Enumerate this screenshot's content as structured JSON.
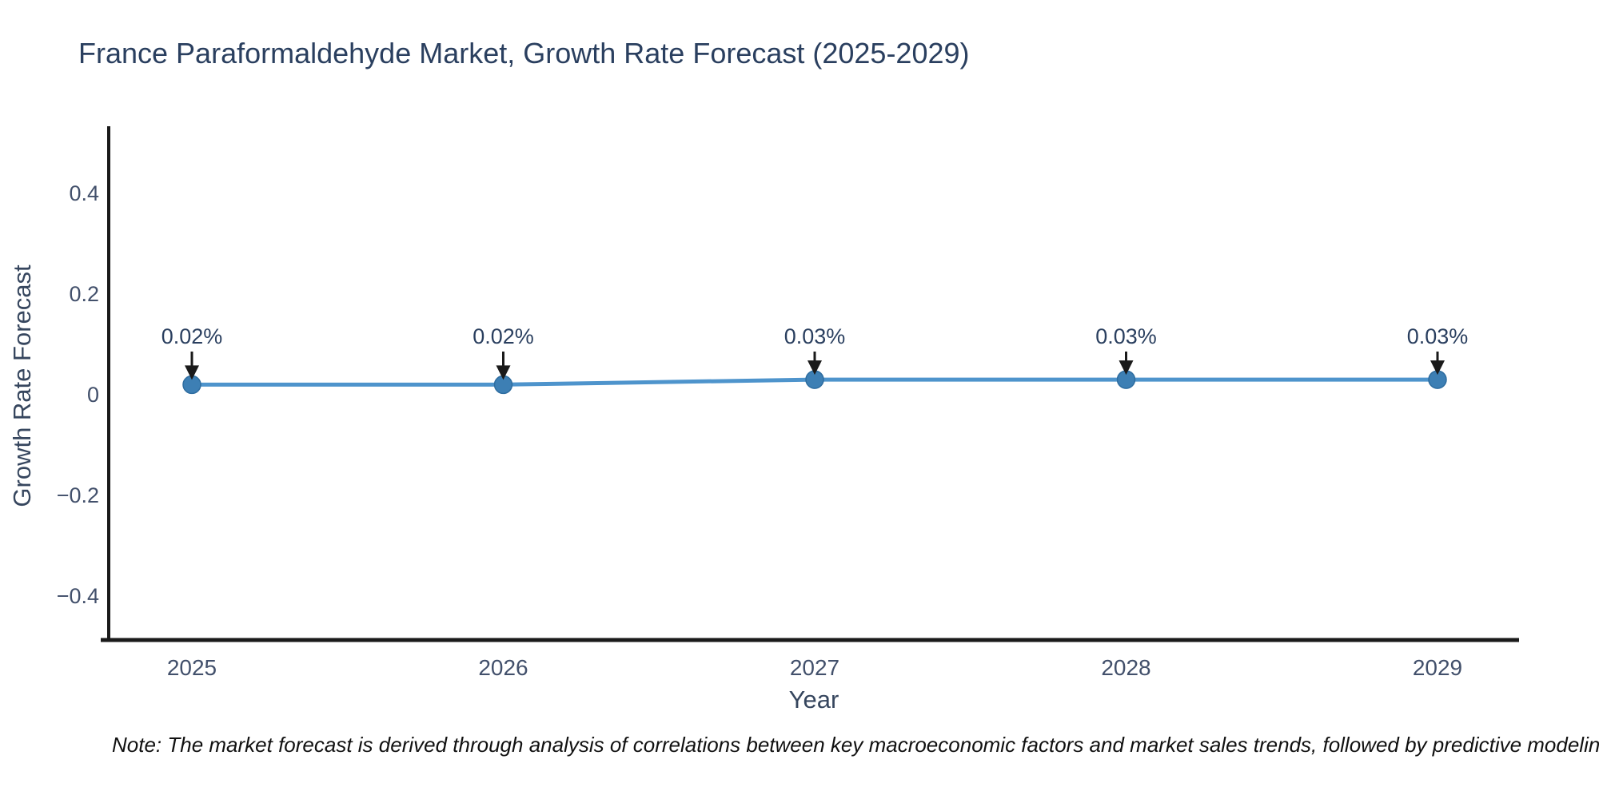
{
  "title": "France Paraformaldehyde Market, Growth Rate Forecast (2025-2029)",
  "note": "Note: The market forecast is derived through analysis of correlations between key macroeconomic factors and market sales trends, followed by predictive modeling to project future sa",
  "chart_data": {
    "type": "line",
    "title": "France Paraformaldehyde Market, Growth Rate Forecast (2025-2029)",
    "xlabel": "Year",
    "ylabel": "Growth Rate Forecast",
    "x": [
      2025,
      2026,
      2027,
      2028,
      2029
    ],
    "series": [
      {
        "name": "Growth Rate Forecast",
        "values": [
          0.02,
          0.02,
          0.03,
          0.03,
          0.03
        ]
      }
    ],
    "annotations": [
      "0.02%",
      "0.02%",
      "0.03%",
      "0.03%",
      "0.03%"
    ],
    "yticks": [
      0.4,
      0.2,
      0,
      -0.2,
      -0.4
    ],
    "ylim": [
      -0.5,
      0.54
    ],
    "grid": false,
    "legend": "none",
    "colors": {
      "line": "#4e94cc",
      "marker_fill": "#3d7fb4",
      "marker_edge": "#2e6da0",
      "axis_line": "#1a1a1a",
      "tick_text": "#42506b",
      "title_text": "#2a3f5f",
      "annotation_text": "#2a3f5f",
      "arrow": "#1a1a1a"
    }
  }
}
